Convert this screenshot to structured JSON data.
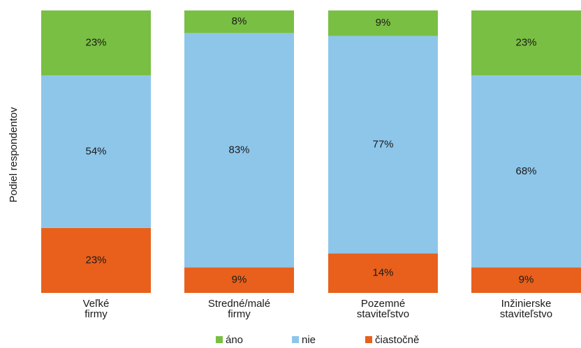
{
  "chart_data": {
    "type": "bar",
    "stacked": true,
    "percent": true,
    "categories": [
      [
        "Veľké",
        "firmy"
      ],
      [
        "Stredné/malé",
        "firmy"
      ],
      [
        "Pozemné",
        "staviteľstvo"
      ],
      [
        "Inžinierske",
        "staviteľstvo"
      ]
    ],
    "series": [
      {
        "name": "čiastočně",
        "color": "#e8601c",
        "values": [
          23,
          9,
          14,
          9
        ]
      },
      {
        "name": "nie",
        "color": "#8ec6ea",
        "values": [
          54,
          83,
          77,
          68
        ]
      },
      {
        "name": "áno",
        "color": "#79bf43",
        "values": [
          23,
          8,
          9,
          23
        ]
      }
    ],
    "legend_order": [
      "áno",
      "nie",
      "čiastočně"
    ],
    "ylabel": "Podiel respondentov",
    "xlabel": "",
    "ylim": [
      0,
      100
    ],
    "value_suffix": "%",
    "grid": false,
    "legend": "bottom"
  }
}
